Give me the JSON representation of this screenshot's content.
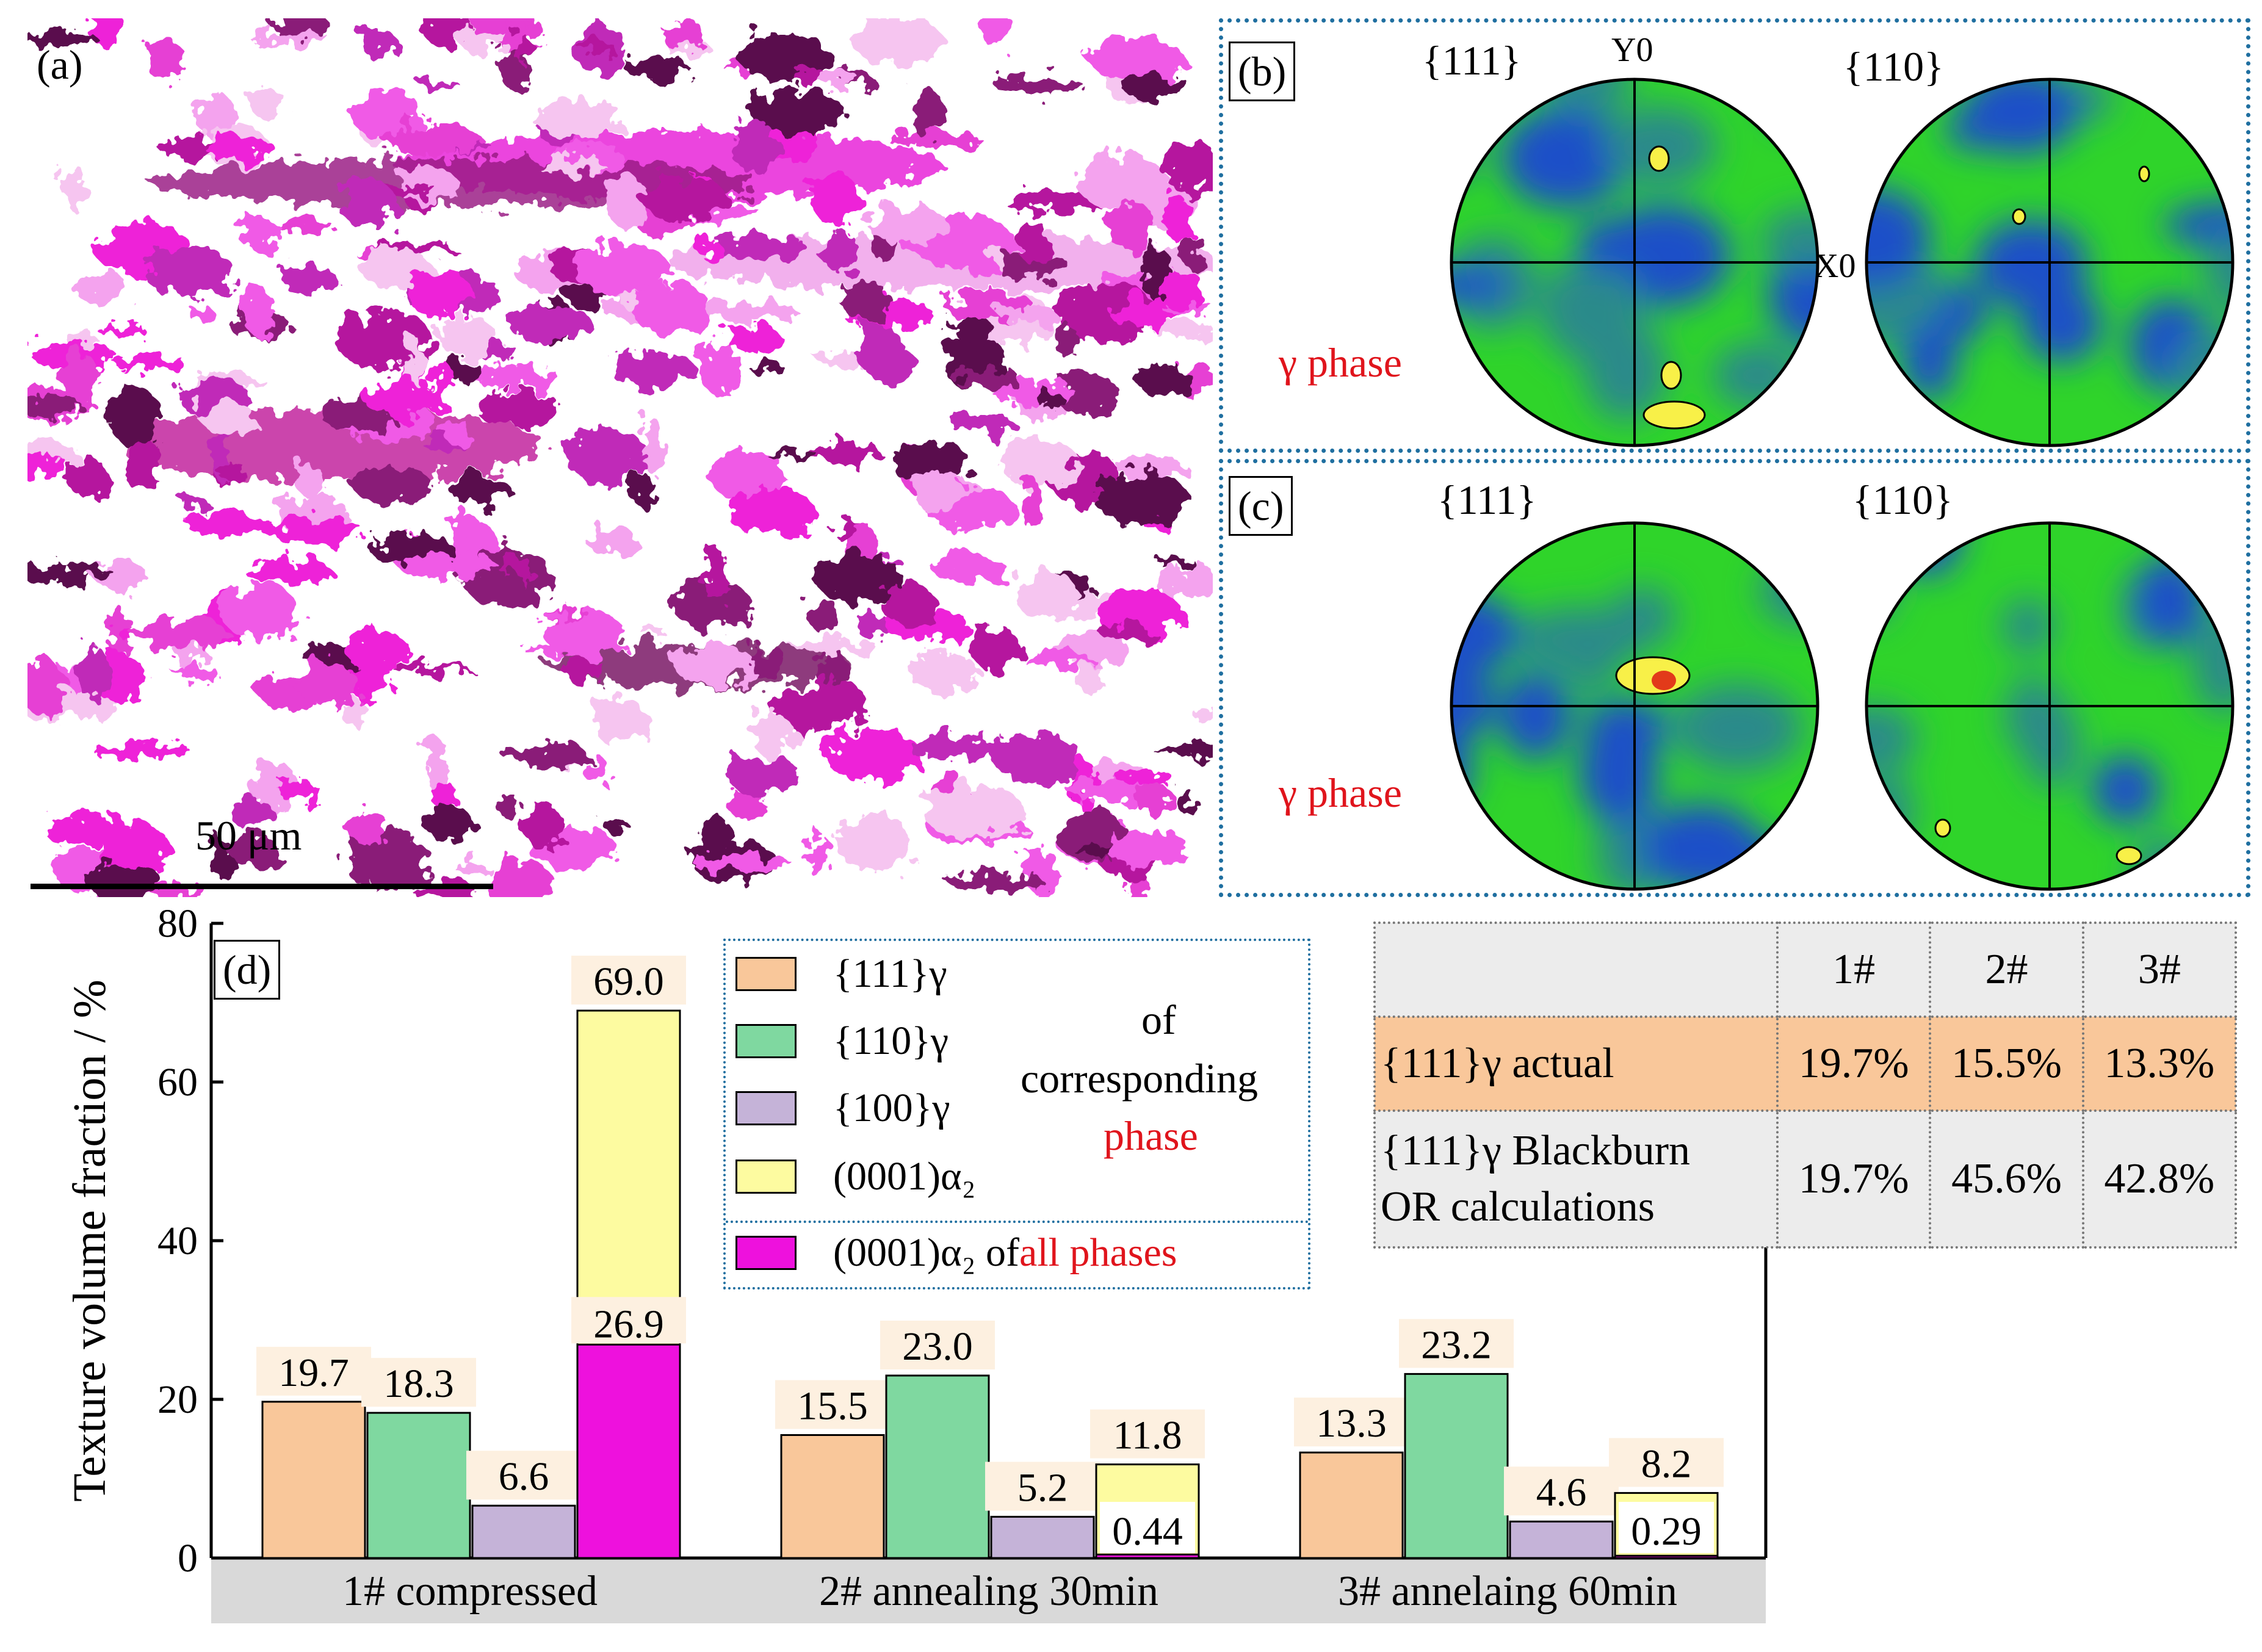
{
  "panels": {
    "a": {
      "label": "(a)",
      "scale_bar": "50 μm"
    },
    "b": {
      "label": "(b)",
      "pf_left": "{111}",
      "pf_right": "{110}",
      "phase": "γ phase",
      "axis_y": "Y0",
      "axis_x": "X0"
    },
    "c": {
      "label": "(c)",
      "pf_left": "{111}",
      "pf_right": "{110}",
      "phase": "γ phase"
    },
    "d": {
      "label": "(d)"
    }
  },
  "legend": {
    "items": [
      {
        "label": "{111}γ",
        "color": "#f9c79a"
      },
      {
        "label": "{110}γ",
        "color": "#7fd8a0"
      },
      {
        "label": "{100}γ",
        "color": "#c5b3d8"
      },
      {
        "label": "(0001)α₂",
        "color": "#fdfba0"
      },
      {
        "label": "(0001)α₂ of ",
        "label_red": "all phases",
        "color": "#ee11dd"
      }
    ],
    "of_text": "of",
    "corresponding_text": "corresponding",
    "phase_text": "phase"
  },
  "orientation_table": {
    "headers": [
      "",
      "1#",
      "2#",
      "3#"
    ],
    "rows": [
      {
        "label": "{111}γ actual",
        "values": [
          "19.7%",
          "15.5%",
          "13.3%"
        ]
      },
      {
        "label_line1": "{111}γ Blackburn",
        "label_line2": "OR calculations",
        "values": [
          "19.7%",
          "45.6%",
          "42.8%"
        ]
      }
    ],
    "highlight_color": "#f9c79a"
  },
  "chart_data": {
    "type": "bar",
    "title": "",
    "xlabel": "",
    "ylabel": "Texture volume fraction / %",
    "ylim": [
      0,
      80
    ],
    "yticks": [
      0,
      20,
      40,
      60,
      80
    ],
    "categories": [
      "1# compressed",
      "2# annealing 30min",
      "3# annelaing 60min"
    ],
    "series": [
      {
        "name": "{111}γ",
        "values": [
          19.7,
          15.5,
          13.3
        ],
        "labels": [
          "19.7",
          "15.5",
          "13.3"
        ],
        "color": "#f9c79a"
      },
      {
        "name": "{110}γ",
        "values": [
          18.3,
          23.0,
          23.2
        ],
        "labels": [
          "18.3",
          "23.0",
          "23.2"
        ],
        "color": "#7fd8a0"
      },
      {
        "name": "{100}γ",
        "values": [
          6.6,
          5.2,
          4.6
        ],
        "labels": [
          "6.6",
          "5.2",
          "4.6"
        ],
        "color": "#c5b3d8"
      },
      {
        "name": "(0001)α2",
        "values": [
          69.0,
          11.8,
          8.2
        ],
        "labels": [
          "69.0",
          "11.8",
          "8.2"
        ],
        "color": "#fdfba0"
      },
      {
        "name": "(0001)α2 of all phases",
        "values": [
          26.9,
          0.44,
          0.29
        ],
        "labels": [
          "26.9",
          "0.44",
          "0.29"
        ],
        "color": "#ee11dd"
      }
    ]
  }
}
